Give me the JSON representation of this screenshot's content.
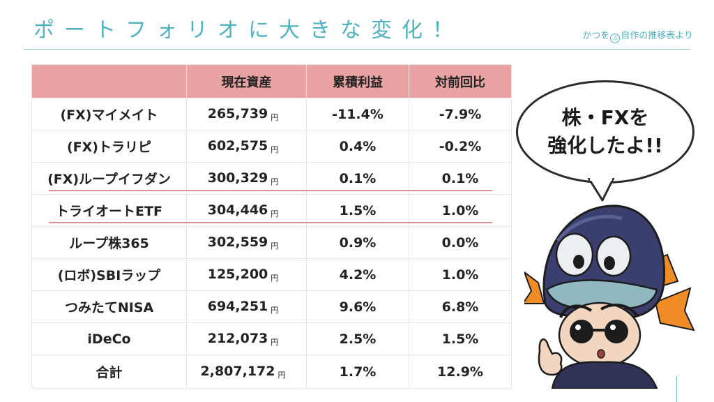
{
  "title": "ポートフォリオに大きな変化！",
  "credit": {
    "prefix": "かつを",
    "badge": "ぶ",
    "suffix": "自作の推移表より"
  },
  "table": {
    "headers": [
      "",
      "現在資産",
      "累積利益",
      "対前回比"
    ],
    "unit": "円",
    "rows": [
      {
        "name": "(FX)マイメイト",
        "amount": "265,739",
        "cumulative": "-11.4%",
        "change": "-7.9%"
      },
      {
        "name": "(FX)トラリピ",
        "amount": "602,575",
        "cumulative": "0.4%",
        "change": "-0.2%"
      },
      {
        "name": "(FX)ループイフダン",
        "amount": "300,329",
        "cumulative": "0.1%",
        "change": "0.1%"
      },
      {
        "name": "トライオートETF",
        "amount": "304,446",
        "cumulative": "1.5%",
        "change": "1.0%"
      },
      {
        "name": "ループ株365",
        "amount": "302,559",
        "cumulative": "0.9%",
        "change": "0.0%"
      },
      {
        "name": "(ロボ)SBIラップ",
        "amount": "125,200",
        "cumulative": "4.2%",
        "change": "1.0%"
      },
      {
        "name": "つみたてNISA",
        "amount": "694,251",
        "cumulative": "9.6%",
        "change": "6.8%"
      },
      {
        "name": "iDeCo",
        "amount": "212,073",
        "cumulative": "2.5%",
        "change": "1.5%"
      },
      {
        "name": "合計",
        "amount": "2,807,172",
        "cumulative": "1.7%",
        "change": "12.9%"
      }
    ]
  },
  "speech_bubble": {
    "line1": "株・FXを",
    "line2": "強化したよ!!"
  },
  "colors": {
    "accent": "#4fb3bf",
    "header_bg": "#e8a2a2",
    "highlight_line": "#d98e95"
  }
}
